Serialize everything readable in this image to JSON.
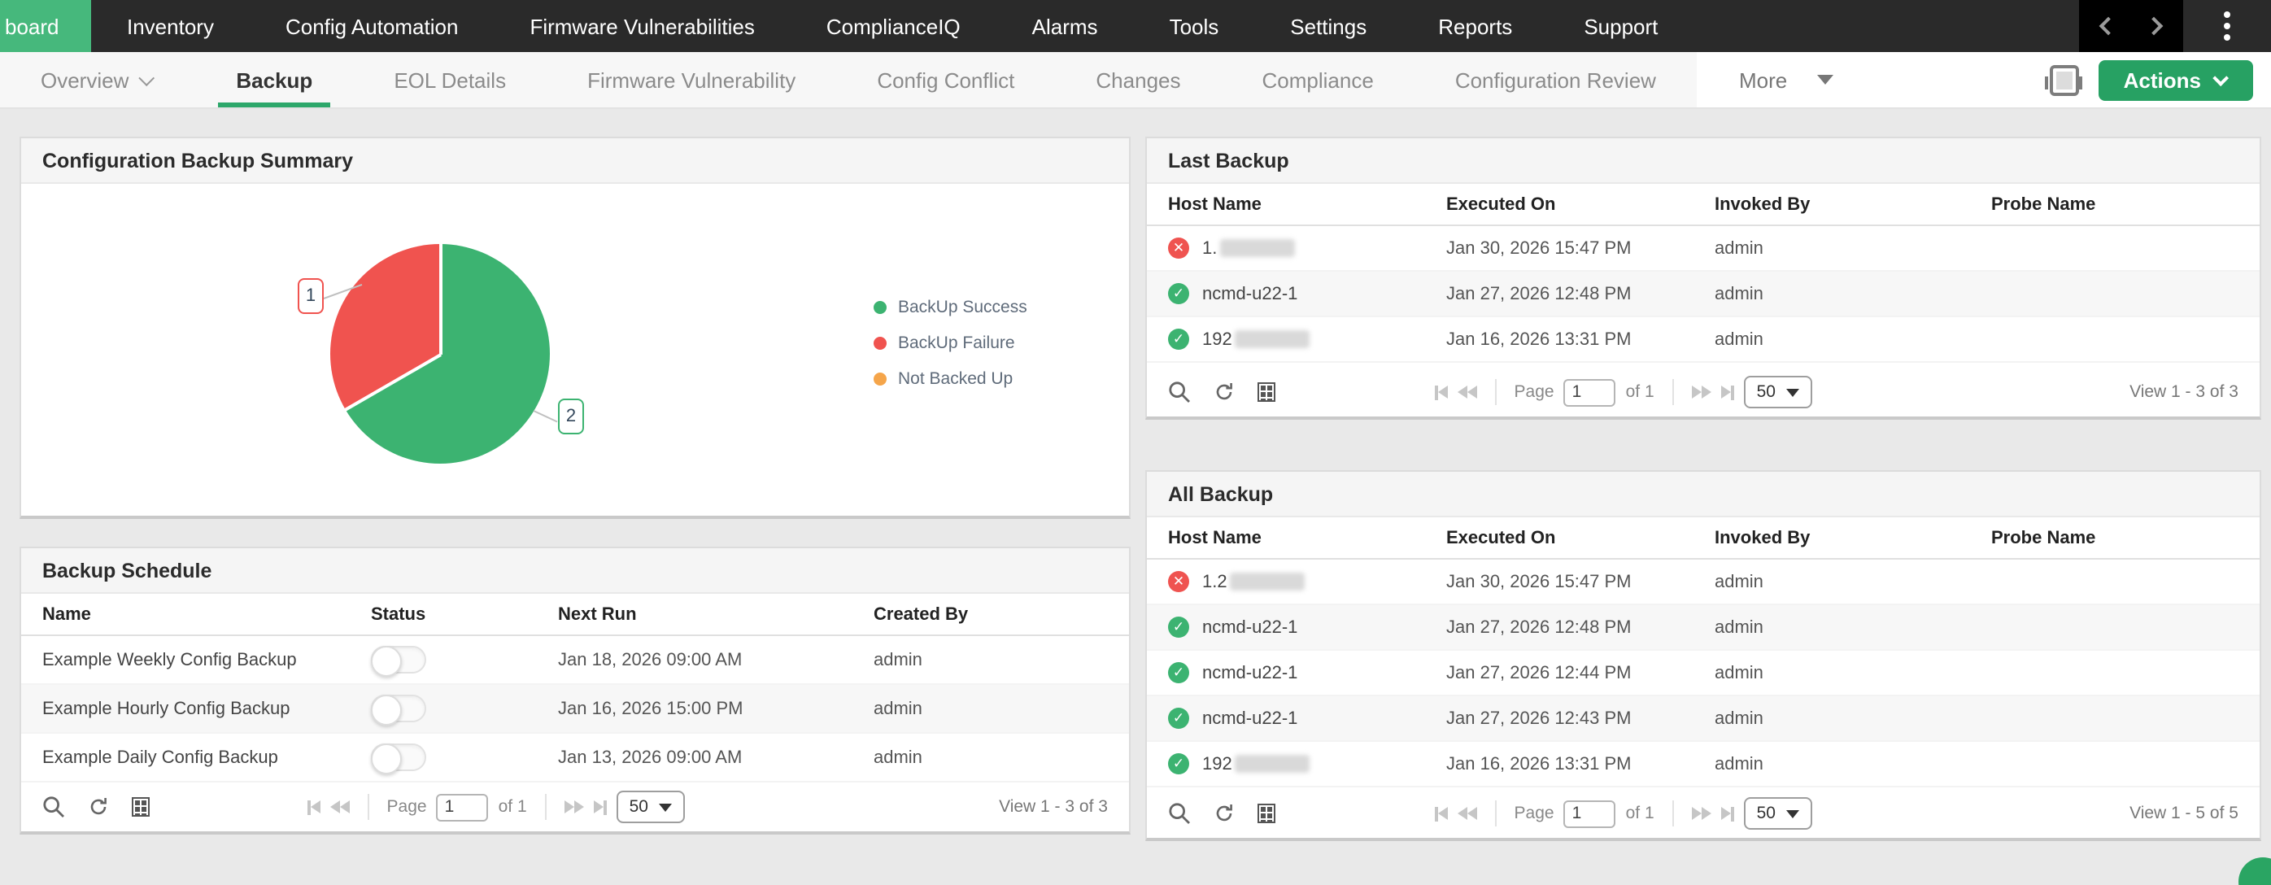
{
  "colors": {
    "nav_active_green": "#46b87c",
    "accent_green": "#27a163",
    "tab_underline_green": "#2ca76a",
    "success": "#3cb371",
    "failure": "#ef5350",
    "not_backed_up": "#f5a54a"
  },
  "topnav": {
    "active_item": "board",
    "items": [
      "Inventory",
      "Config Automation",
      "Firmware Vulnerabilities",
      "ComplianceIQ",
      "Alarms",
      "Tools",
      "Settings",
      "Reports",
      "Support"
    ]
  },
  "tabbar": {
    "overview_label": "Overview",
    "tabs": [
      "Backup",
      "EOL Details",
      "Firmware Vulnerability",
      "Config Conflict",
      "Changes",
      "Compliance",
      "Configuration Review"
    ],
    "active_tab": "Backup",
    "more_label": "More",
    "actions_label": "Actions"
  },
  "chart_data": {
    "type": "pie",
    "panel_title": "Configuration Backup Summary",
    "legend_position": "right",
    "start_angle_deg": -90,
    "slices": [
      {
        "label": "BackUp Success",
        "value": 2,
        "color": "#3cb371",
        "callout": "2"
      },
      {
        "label": "BackUp Failure",
        "value": 1,
        "color": "#f0534f",
        "callout": "1"
      },
      {
        "label": "Not Backed Up",
        "value": 0,
        "color": "#f5a54a",
        "callout": ""
      }
    ]
  },
  "backup_schedule": {
    "title": "Backup Schedule",
    "columns": [
      "Name",
      "Status",
      "Next Run",
      "Created By"
    ],
    "rows": [
      {
        "name": "Example Weekly Config Backup",
        "status": "off",
        "next_run": "Jan 18, 2026 09:00 AM",
        "created_by": "admin"
      },
      {
        "name": "Example Hourly Config Backup",
        "status": "off",
        "next_run": "Jan 16, 2026 15:00 PM",
        "created_by": "admin"
      },
      {
        "name": "Example Daily Config Backup",
        "status": "off",
        "next_run": "Jan 13, 2026 09:00 AM",
        "created_by": "admin"
      }
    ],
    "pager": {
      "page_label": "Page",
      "page_value": "1",
      "of_label": "of 1",
      "page_size": "50",
      "view_label": "View 1 - 3 of 3"
    }
  },
  "last_backup": {
    "title": "Last Backup",
    "columns": [
      "Host Name",
      "Executed On",
      "Invoked By",
      "Probe Name"
    ],
    "rows": [
      {
        "status": "failure",
        "host_visible": "1.",
        "host_redacted": true,
        "executed_on": "Jan 30, 2026 15:47 PM",
        "invoked_by": "admin",
        "probe_name": ""
      },
      {
        "status": "success",
        "host_visible": "ncmd-u22-1",
        "host_redacted": false,
        "executed_on": "Jan 27, 2026 12:48 PM",
        "invoked_by": "admin",
        "probe_name": ""
      },
      {
        "status": "success",
        "host_visible": "192",
        "host_redacted": true,
        "executed_on": "Jan 16, 2026 13:31 PM",
        "invoked_by": "admin",
        "probe_name": ""
      }
    ],
    "pager": {
      "page_label": "Page",
      "page_value": "1",
      "of_label": "of 1",
      "page_size": "50",
      "view_label": "View 1 - 3 of 3"
    }
  },
  "all_backup": {
    "title": "All Backup",
    "columns": [
      "Host Name",
      "Executed On",
      "Invoked By",
      "Probe Name"
    ],
    "rows": [
      {
        "status": "failure",
        "host_visible": "1.2",
        "host_redacted": true,
        "executed_on": "Jan 30, 2026 15:47 PM",
        "invoked_by": "admin",
        "probe_name": ""
      },
      {
        "status": "success",
        "host_visible": "ncmd-u22-1",
        "host_redacted": false,
        "executed_on": "Jan 27, 2026 12:48 PM",
        "invoked_by": "admin",
        "probe_name": ""
      },
      {
        "status": "success",
        "host_visible": "ncmd-u22-1",
        "host_redacted": false,
        "executed_on": "Jan 27, 2026 12:44 PM",
        "invoked_by": "admin",
        "probe_name": ""
      },
      {
        "status": "success",
        "host_visible": "ncmd-u22-1",
        "host_redacted": false,
        "executed_on": "Jan 27, 2026 12:43 PM",
        "invoked_by": "admin",
        "probe_name": ""
      },
      {
        "status": "success",
        "host_visible": "192",
        "host_redacted": true,
        "executed_on": "Jan 16, 2026 13:31 PM",
        "invoked_by": "admin",
        "probe_name": ""
      }
    ],
    "pager": {
      "page_label": "Page",
      "page_value": "1",
      "of_label": "of 1",
      "page_size": "50",
      "view_label": "View 1 - 5 of 5"
    }
  }
}
